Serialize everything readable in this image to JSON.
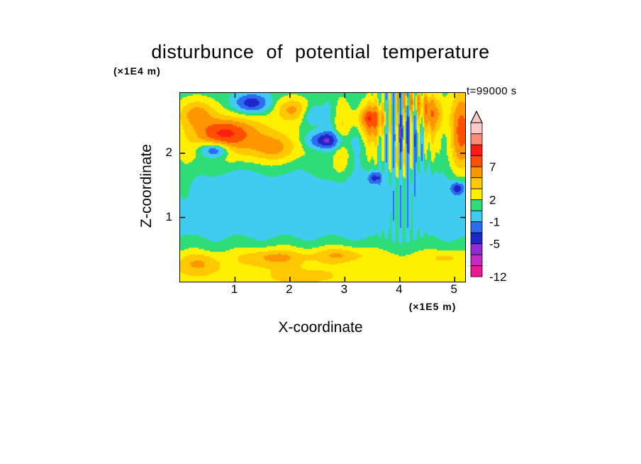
{
  "chart_data": {
    "type": "filled-contour",
    "title": "disturbunce of potential temperature",
    "xlabel": "X-coordinate",
    "ylabel": "Z-coordinate",
    "x_unit": "(×1E5 m)",
    "y_unit": "(×1E4 m)",
    "time_annotation": "t=99000 s",
    "x_range": [
      0,
      5.19
    ],
    "z_range": [
      0,
      2.94
    ],
    "x_ticks": [
      1,
      2,
      3,
      4,
      5
    ],
    "z_ticks": [
      1,
      2
    ],
    "colorbar": {
      "boundaries": [
        -12,
        -9,
        -7,
        -5,
        -3,
        -1,
        0.8,
        2,
        3.5,
        5,
        7,
        9.5,
        12,
        15,
        18
      ],
      "colors": [
        "#EC1896",
        "#C32CC3",
        "#8F2CD6",
        "#1E28C8",
        "#2F6BF0",
        "#40CCF0",
        "#2EDC78",
        "#FFF000",
        "#FFC800",
        "#FF9600",
        "#FF5000",
        "#FF1E14",
        "#FF8C78",
        "#FFC8C8"
      ],
      "labeled_values": [
        7,
        2,
        -1,
        -5,
        -12
      ]
    },
    "field_model": {
      "profile": [
        [
          0,
          3.0
        ],
        [
          0.22,
          2.75
        ],
        [
          0.4,
          2.3
        ],
        [
          0.5,
          1.6
        ],
        [
          0.66,
          0.9
        ],
        [
          0.85,
          0.1
        ],
        [
          1.5,
          -0.1
        ],
        [
          1.72,
          0.6
        ],
        [
          1.98,
          1.3
        ],
        [
          2.3,
          1.5
        ],
        [
          2.6,
          1.35
        ],
        [
          2.94,
          1.25
        ]
      ],
      "blobs": [
        [
          0.95,
          2.25,
          0.8,
          0.34,
          4.5
        ],
        [
          0.8,
          2.32,
          0.38,
          0.17,
          4.5
        ],
        [
          1.75,
          2.08,
          0.4,
          0.2,
          3.0
        ],
        [
          0.3,
          2.62,
          0.32,
          0.22,
          4.0
        ],
        [
          2.05,
          2.68,
          0.3,
          0.18,
          4.0
        ],
        [
          1.3,
          2.78,
          0.3,
          0.14,
          -5.8
        ],
        [
          0.62,
          2.05,
          0.26,
          0.12,
          -6.0
        ],
        [
          2.65,
          2.2,
          0.3,
          0.13,
          -6.2
        ],
        [
          2.4,
          2.6,
          0.2,
          0.16,
          -2.5
        ],
        [
          3.5,
          2.52,
          0.4,
          0.28,
          4.2
        ],
        [
          3.45,
          2.55,
          0.16,
          0.11,
          3.0
        ],
        [
          4.05,
          2.35,
          0.15,
          0.32,
          -5.0
        ],
        [
          4.55,
          2.62,
          0.28,
          0.26,
          4.0
        ],
        [
          4.3,
          2.8,
          0.22,
          0.15,
          3.0
        ],
        [
          5.12,
          2.35,
          0.28,
          0.62,
          5.0
        ],
        [
          5.05,
          1.45,
          0.11,
          0.09,
          -5.5
        ],
        [
          3.55,
          1.62,
          0.13,
          0.09,
          -4.5
        ],
        [
          2.85,
          1.8,
          0.75,
          0.3,
          0.9
        ],
        [
          0.08,
          1.6,
          0.2,
          0.5,
          1.3
        ],
        [
          1.7,
          0.38,
          0.55,
          0.14,
          3.2
        ],
        [
          2.9,
          0.42,
          0.5,
          0.12,
          2.8
        ],
        [
          0.35,
          0.28,
          0.38,
          0.16,
          2.6
        ],
        [
          4.85,
          0.38,
          0.32,
          0.11,
          1.6
        ],
        [
          2.2,
          0.1,
          0.65,
          0.12,
          1.2
        ]
      ],
      "stripes": [
        {
          "kind": "fine",
          "x0": 4.05,
          "xw": 0.38,
          "wavelength": 0.13,
          "amp": 4.2
        },
        {
          "kind": "broad",
          "x0": 3.9,
          "x_min": 2.4,
          "wavelength": 0.55,
          "amp": 1.6,
          "z_center": 2.35,
          "z_sigma": 0.55
        },
        {
          "kind": "broad",
          "x0": 0.0,
          "x_min": -1.0,
          "wavelength": 0.85,
          "amp": 0.3,
          "z_center": 0.5,
          "z_sigma": 0.35
        },
        {
          "kind": "broad",
          "x0": 0.3,
          "x_min": -1.0,
          "wavelength": 1.1,
          "amp": 0.35,
          "z_center": 1.75,
          "z_sigma": 0.3
        }
      ]
    }
  }
}
